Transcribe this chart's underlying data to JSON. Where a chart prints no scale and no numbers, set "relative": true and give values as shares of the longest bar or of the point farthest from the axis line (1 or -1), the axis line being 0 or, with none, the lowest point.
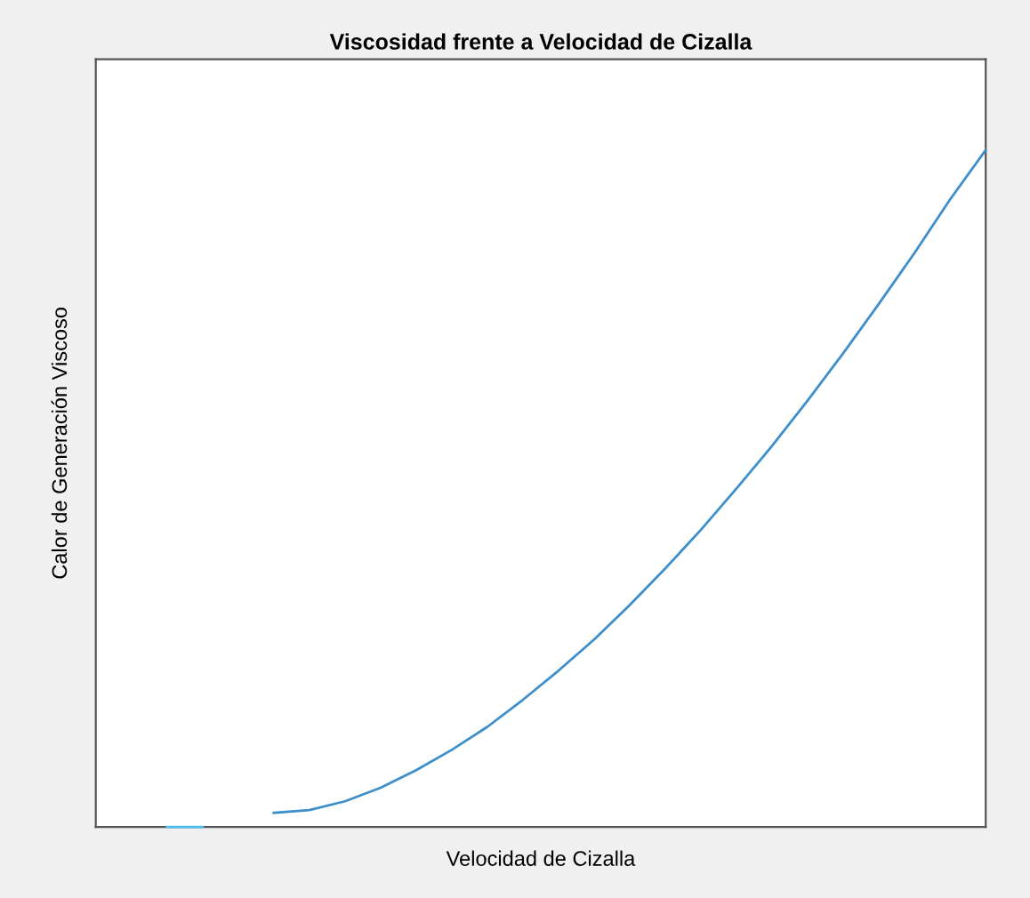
{
  "chart_data": {
    "type": "line",
    "title": "Viscosidad frente a Velocidad de Cizalla",
    "xlabel": "Velocidad de Cizalla",
    "ylabel": "Calor de Generación Viscoso",
    "relative": true,
    "categories": [
      null,
      null,
      null,
      null,
      null,
      null,
      null,
      null,
      null,
      null,
      null,
      null,
      null,
      null,
      null,
      null,
      null,
      null,
      null,
      null,
      null,
      null,
      null,
      null,
      null,
      null
    ],
    "series": [
      {
        "color": "#3d8fcc",
        "values": [
          null,
          null,
          null,
          null,
          null,
          0.021,
          0.025,
          0.038,
          0.058,
          0.084,
          0.114,
          0.148,
          0.188,
          0.231,
          0.277,
          0.328,
          0.382,
          0.439,
          0.5,
          0.563,
          0.63,
          0.7,
          0.773,
          0.848,
          0.927,
          1.0
        ]
      },
      {
        "color": "#4dbeee",
        "values": [
          null,
          null,
          0,
          0,
          null,
          null,
          null,
          null,
          null,
          null,
          null,
          null,
          null,
          null,
          null,
          null,
          null,
          null,
          null,
          null,
          null,
          null,
          null,
          null,
          null,
          null
        ]
      }
    ]
  }
}
